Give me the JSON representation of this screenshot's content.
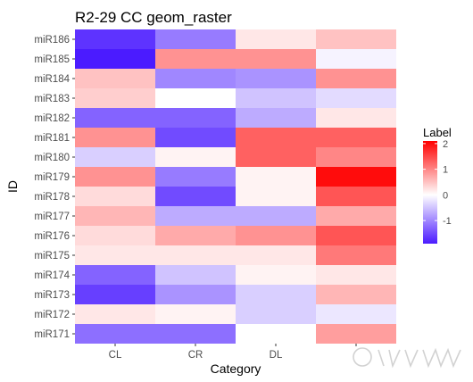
{
  "chart_data": {
    "type": "heatmap",
    "title": "R2-29 CC geom_raster",
    "xlabel": "Category",
    "ylabel": "ID",
    "x_categories": [
      "CL",
      "CR",
      "DL",
      ""
    ],
    "y_categories": [
      "miR186",
      "miR185",
      "miR184",
      "miR183",
      "miR182",
      "miR181",
      "miR180",
      "miR179",
      "miR178",
      "miR177",
      "miR176",
      "miR175",
      "miR174",
      "miR173",
      "miR172",
      "miR171"
    ],
    "values": [
      [
        -1.7,
        -1.1,
        0.2,
        0.5
      ],
      [
        -1.9,
        0.9,
        0.9,
        -0.1
      ],
      [
        0.5,
        -1.0,
        -0.9,
        0.9
      ],
      [
        0.4,
        0.0,
        -0.5,
        -0.3
      ],
      [
        -1.3,
        -1.3,
        -0.7,
        0.2
      ],
      [
        0.9,
        -1.5,
        1.3,
        1.3
      ],
      [
        -0.4,
        0.1,
        1.3,
        1.0
      ],
      [
        0.9,
        -1.1,
        0.1,
        2.0
      ],
      [
        0.3,
        -1.5,
        0.1,
        1.4
      ],
      [
        0.6,
        -0.7,
        -0.7,
        0.7
      ],
      [
        0.3,
        0.7,
        0.9,
        1.4
      ],
      [
        0.2,
        0.2,
        0.2,
        1.1
      ],
      [
        -1.3,
        -0.5,
        0.1,
        0.2
      ],
      [
        -1.6,
        -0.9,
        -0.4,
        0.6
      ],
      [
        0.2,
        0.1,
        -0.4,
        -0.2
      ],
      [
        -1.2,
        -1.2,
        0.0,
        0.8
      ]
    ],
    "color_scale": {
      "min": -1.9,
      "max": 2.1,
      "low": "#4b1bff",
      "mid": "#ffffff",
      "high": "#ff0000"
    },
    "legend": {
      "title": "Label",
      "ticks": [
        2,
        1,
        0,
        -1
      ],
      "placement": "right"
    },
    "grid": false,
    "panel_background": "#ebebeb"
  }
}
